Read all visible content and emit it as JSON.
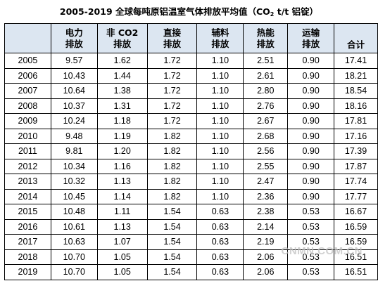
{
  "title": {
    "prefix": "2005-2019 全球每吨原铝温室气体排放平均值（CO",
    "sub": "2",
    "suffix": " t/t 铝锭）"
  },
  "headers": [
    {
      "line1": "",
      "line2": ""
    },
    {
      "line1": "电力",
      "line2": "排放"
    },
    {
      "line1": "非 CO2",
      "line2": "排放"
    },
    {
      "line1": "直接",
      "line2": "排放"
    },
    {
      "line1": "辅料",
      "line2": "排放"
    },
    {
      "line1": "热能",
      "line2": "排放"
    },
    {
      "line1": "运输",
      "line2": "排放"
    },
    {
      "line1": "",
      "line2": "合计"
    }
  ],
  "rows": [
    [
      "2005",
      "9.57",
      "1.62",
      "1.72",
      "1.10",
      "2.51",
      "0.90",
      "17.41"
    ],
    [
      "2006",
      "10.43",
      "1.44",
      "1.72",
      "1.10",
      "2.61",
      "0.90",
      "18.21"
    ],
    [
      "2007",
      "10.64",
      "1.38",
      "1.72",
      "1.10",
      "2.80",
      "0.90",
      "18.54"
    ],
    [
      "2008",
      "10.37",
      "1.31",
      "1.72",
      "1.10",
      "2.76",
      "0.90",
      "18.16"
    ],
    [
      "2009",
      "10.24",
      "1.18",
      "1.72",
      "1.10",
      "2.67",
      "0.90",
      "17.81"
    ],
    [
      "2010",
      "9.48",
      "1.19",
      "1.82",
      "1.10",
      "2.68",
      "0.90",
      "17.16"
    ],
    [
      "2011",
      "9.81",
      "1.20",
      "1.82",
      "1.10",
      "2.56",
      "0.90",
      "17.39"
    ],
    [
      "2012",
      "10.34",
      "1.16",
      "1.82",
      "1.10",
      "2.55",
      "0.90",
      "17.87"
    ],
    [
      "2013",
      "10.32",
      "1.13",
      "1.82",
      "1.10",
      "2.47",
      "0.90",
      "17.74"
    ],
    [
      "2014",
      "10.45",
      "1.14",
      "1.82",
      "1.10",
      "2.36",
      "0.90",
      "17.77"
    ],
    [
      "2015",
      "10.48",
      "1.11",
      "1.54",
      "0.63",
      "2.38",
      "0.53",
      "16.67"
    ],
    [
      "2016",
      "10.61",
      "1.13",
      "1.54",
      "0.63",
      "2.14",
      "0.53",
      "16.59"
    ],
    [
      "2017",
      "10.63",
      "1.07",
      "1.54",
      "0.63",
      "2.19",
      "0.53",
      "16.59"
    ],
    [
      "2018",
      "10.70",
      "1.05",
      "1.54",
      "0.63",
      "2.06",
      "0.53",
      "16.51"
    ],
    [
      "2019",
      "10.70",
      "1.05",
      "1.54",
      "0.63",
      "2.06",
      "0.53",
      "16.51"
    ]
  ],
  "watermark": "CNMN.COM.CN",
  "colors": {
    "header_bg": "#dce6f1",
    "border": "#000000",
    "watermark": "#969696"
  }
}
